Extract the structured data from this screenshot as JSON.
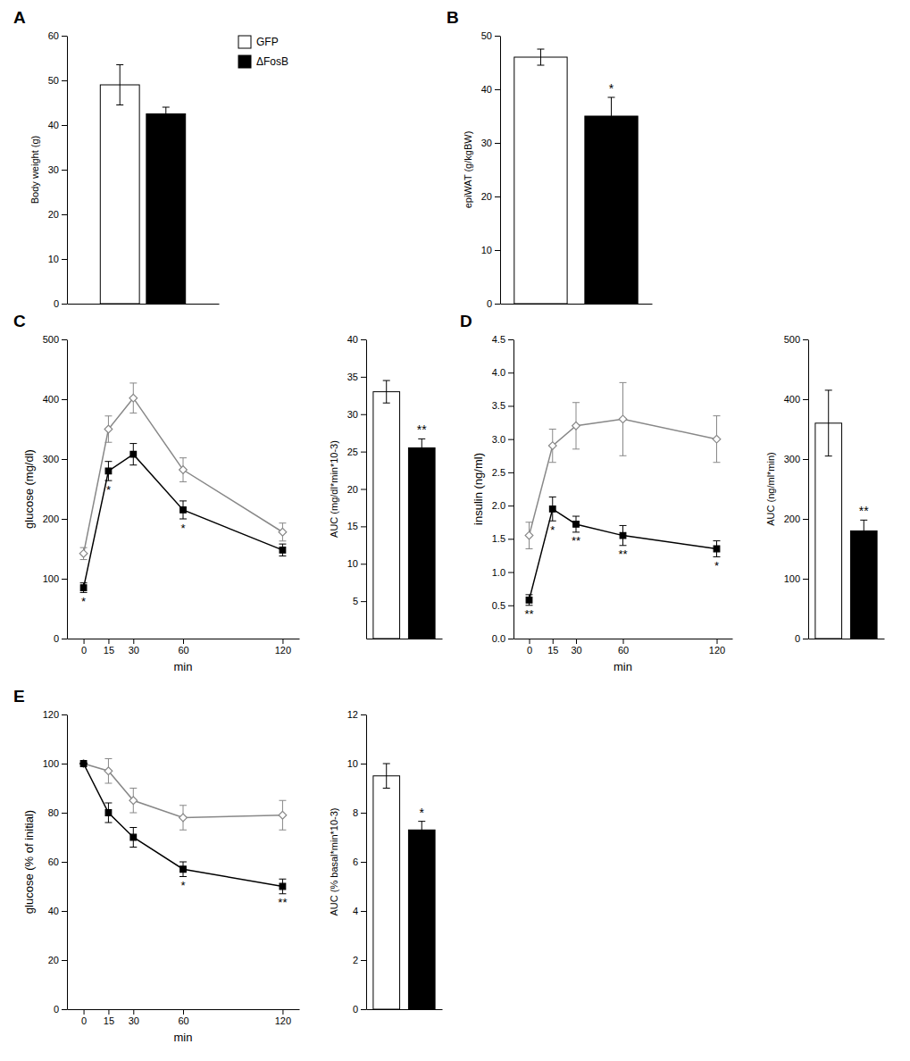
{
  "chart_data": [
    {
      "type": "bar",
      "title": "A",
      "categories": [
        null
      ],
      "series": [
        {
          "name": "GFP",
          "color": "white",
          "values": [
            49.0
          ],
          "errors": [
            4.5
          ]
        },
        {
          "name": "ΔFosB",
          "color": "black",
          "values": [
            42.5
          ],
          "errors": [
            1.5
          ]
        }
      ],
      "ylabel": "Body weight (g)",
      "ylim": [
        0,
        60
      ],
      "yticks": [
        0,
        10,
        20,
        30,
        40,
        50,
        60
      ],
      "legend": "upper right"
    },
    {
      "type": "bar",
      "title": "B",
      "categories": [
        null,
        null
      ],
      "values": [
        46.0,
        35.0
      ],
      "errors": [
        1.5,
        3.5
      ],
      "colors": [
        "white",
        "black"
      ],
      "ylabel": "epiWAT (g/kgBW)",
      "ylim": [
        0,
        50
      ],
      "yticks": [
        0,
        10,
        20,
        30,
        40,
        50
      ],
      "annotations": [
        {
          "text": "*",
          "index": 1
        }
      ]
    },
    {
      "type": "line",
      "title": "C",
      "x": [
        0,
        15,
        30,
        60,
        120
      ],
      "xlim": [
        -10,
        130
      ],
      "xticks": [
        0,
        15,
        30,
        60,
        120
      ],
      "xlabel": "min",
      "ylabel": "glucose (mg/dl)",
      "ylim": [
        0,
        500
      ],
      "yticks": [
        0,
        100,
        200,
        300,
        400,
        500
      ],
      "series": [
        {
          "color": "#888888",
          "marker": "open-diamond",
          "line_style": "solid",
          "values": [
            142,
            350,
            402,
            282,
            178
          ],
          "errors": [
            10,
            22,
            25,
            20,
            15
          ]
        },
        {
          "color": "#000000",
          "marker": "square",
          "line_style": "solid",
          "values": [
            85,
            280,
            308,
            215,
            148
          ],
          "errors": [
            8,
            16,
            18,
            15,
            10
          ]
        }
      ],
      "annotations": [
        {
          "text": "*",
          "x": 0
        },
        {
          "text": "*",
          "x": 15
        },
        {
          "text": "*",
          "x": 60
        }
      ]
    },
    {
      "type": "bar",
      "categories": [
        null,
        null
      ],
      "values": [
        33.0,
        25.5
      ],
      "errors": [
        1.5,
        1.2
      ],
      "colors": [
        "white",
        "black"
      ],
      "ylabel": "AUC (mg/dl*min*10-3)",
      "ylim": [
        0,
        40
      ],
      "yticks": [
        5,
        10,
        15,
        20,
        25,
        30,
        35,
        40
      ],
      "annotations": [
        {
          "text": "**",
          "index": 1
        }
      ]
    },
    {
      "type": "line",
      "title": "D",
      "x": [
        0,
        15,
        30,
        60,
        120
      ],
      "xlim": [
        -10,
        130
      ],
      "xticks": [
        0,
        15,
        30,
        60,
        120
      ],
      "xlabel": "min",
      "ylabel": "insulin (ng/ml)",
      "ylim": [
        0.0,
        4.5
      ],
      "yticks": [
        {
          "value": 0.0,
          "label": "0.0"
        },
        0.5,
        {
          "value": 1.0,
          "label": "1.0"
        },
        1.5,
        {
          "value": 2.0,
          "label": "2.0"
        },
        2.5,
        {
          "value": 3.0,
          "label": "3.0"
        },
        3.5,
        {
          "value": 4.0,
          "label": "4.0"
        },
        4.5
      ],
      "series": [
        {
          "color": "#888888",
          "marker": "open-diamond",
          "line_style": "solid",
          "values": [
            1.55,
            2.9,
            3.2,
            3.3,
            3.0
          ],
          "errors": [
            0.2,
            0.25,
            0.35,
            0.55,
            0.35
          ]
        },
        {
          "color": "#000000",
          "marker": "square",
          "line_style": "solid",
          "values": [
            0.58,
            1.95,
            1.72,
            1.55,
            1.35
          ],
          "errors": [
            0.08,
            0.18,
            0.12,
            0.15,
            0.12
          ]
        }
      ],
      "annotations": [
        {
          "text": "**",
          "x": 0
        },
        {
          "text": "*",
          "x": 15
        },
        {
          "text": "**",
          "x": 30
        },
        {
          "text": "**",
          "x": 60
        },
        {
          "text": "*",
          "x": 120
        }
      ]
    },
    {
      "type": "bar",
      "categories": [
        null,
        null
      ],
      "values": [
        360,
        180
      ],
      "errors": [
        55,
        18
      ],
      "colors": [
        "white",
        "black"
      ],
      "ylabel": "AUC (ng/ml*min)",
      "ylim": [
        0,
        500
      ],
      "yticks": [
        0,
        100,
        200,
        300,
        400,
        500
      ],
      "annotations": [
        {
          "text": "**",
          "index": 1
        }
      ]
    },
    {
      "type": "line",
      "title": "E",
      "x": [
        0,
        15,
        30,
        60,
        120
      ],
      "xlim": [
        -10,
        130
      ],
      "xticks": [
        0,
        15,
        30,
        60,
        120
      ],
      "xlabel": "min",
      "ylabel": "glucose (% of initial)",
      "ylim": [
        0,
        120
      ],
      "yticks": [
        0,
        20,
        40,
        60,
        80,
        100,
        120
      ],
      "series": [
        {
          "color": "#888888",
          "marker": "open-diamond",
          "line_style": "solid",
          "values": [
            100,
            97,
            85,
            78,
            79
          ],
          "errors": [
            0,
            5,
            5,
            5,
            6
          ]
        },
        {
          "color": "#000000",
          "marker": "square",
          "line_style": "solid",
          "values": [
            100,
            80,
            70,
            57,
            50
          ],
          "errors": [
            0,
            4,
            4,
            3,
            3
          ]
        }
      ],
      "annotations": [
        {
          "text": "*",
          "x": 60
        },
        {
          "text": "**",
          "x": 120
        }
      ]
    },
    {
      "type": "bar",
      "categories": [
        null,
        null
      ],
      "values": [
        9.5,
        7.3
      ],
      "errors": [
        0.5,
        0.35
      ],
      "colors": [
        "white",
        "black"
      ],
      "ylabel": "AUC (% basal*min*10-3)",
      "ylim": [
        0,
        12
      ],
      "yticks": [
        0,
        2,
        4,
        6,
        8,
        10,
        12
      ],
      "annotations": [
        {
          "text": "*",
          "index": 1
        }
      ]
    }
  ]
}
